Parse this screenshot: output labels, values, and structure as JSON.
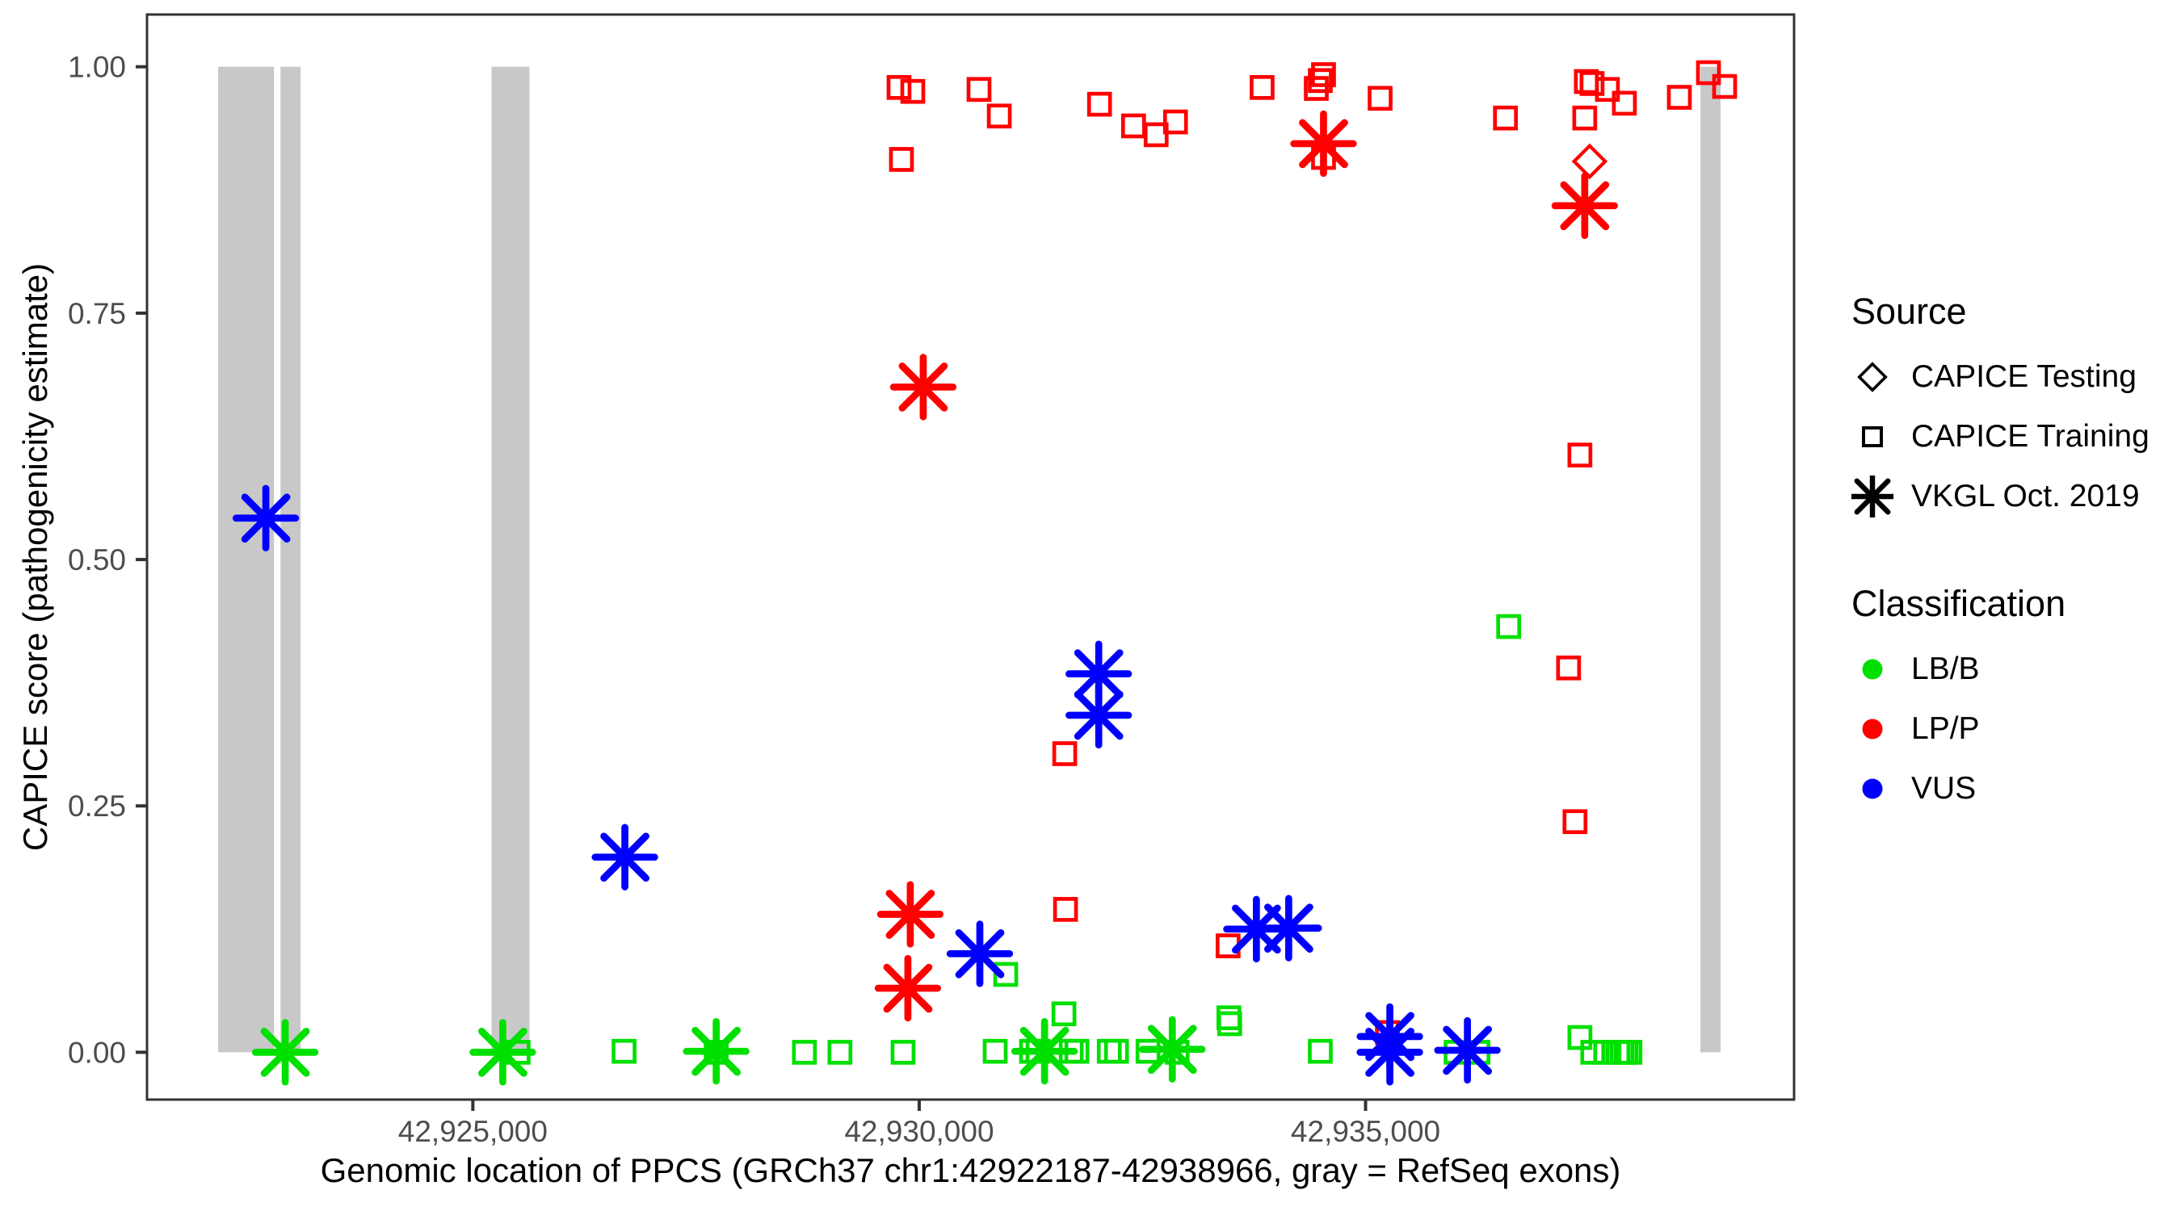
{
  "figure": {
    "x_axis_title": "Genomic location of PPCS (GRCh37 chr1:42922187-42938966, gray = RefSeq exons)",
    "y_axis_title": "CAPICE score (pathogenicity estimate)"
  },
  "legend": {
    "source": {
      "title": "Source",
      "items": [
        {
          "label": "CAPICE Testing",
          "marker": "diamond"
        },
        {
          "label": "CAPICE Training",
          "marker": "square"
        },
        {
          "label": "VKGL Oct. 2019",
          "marker": "asterisk"
        }
      ]
    },
    "classification": {
      "title": "Classification",
      "items": [
        {
          "label": "LB/B",
          "color": "#00E000"
        },
        {
          "label": "LP/P",
          "color": "#FF0000"
        },
        {
          "label": "VUS",
          "color": "#0000FF"
        }
      ]
    }
  },
  "chart_data": {
    "type": "scatter",
    "title": "",
    "xlabel": "Genomic location of PPCS (GRCh37 chr1:42922187-42938966, gray = RefSeq exons)",
    "ylabel": "CAPICE score (pathogenicity estimate)",
    "xlim": [
      42921350,
      42939800
    ],
    "ylim": [
      -0.048,
      1.053
    ],
    "grid": false,
    "legend_position": "right",
    "x_ticks": [
      {
        "value": 42925000,
        "label": "42,925,000"
      },
      {
        "value": 42930000,
        "label": "42,930,000"
      },
      {
        "value": 42935000,
        "label": "42,935,000"
      }
    ],
    "y_ticks": [
      {
        "value": 0.0,
        "label": "0.00"
      },
      {
        "value": 0.25,
        "label": "0.25"
      },
      {
        "value": 0.5,
        "label": "0.50"
      },
      {
        "value": 0.75,
        "label": "0.75"
      },
      {
        "value": 1.0,
        "label": "1.00"
      }
    ],
    "exon_color": "#C8C8C8",
    "exon_note": "gray = RefSeq exons",
    "refseq_exons": [
      [
        42922147,
        42922772
      ],
      [
        42922845,
        42923071
      ],
      [
        42925209,
        42925634
      ],
      [
        42938751,
        42938977
      ]
    ],
    "class_colors": {
      "LB/B": "#00E000",
      "LP/P": "#FF0000",
      "VUS": "#0000FF"
    },
    "series": [
      {
        "name": "CAPICE Testing",
        "marker": "diamond",
        "points": [
          [
            42937510,
            0.904,
            "LP/P"
          ]
        ]
      },
      {
        "name": "CAPICE Training",
        "marker": "square",
        "points": [
          [
            42929774,
            0.979,
            "LP/P"
          ],
          [
            42929928,
            0.975,
            "LP/P"
          ],
          [
            42929801,
            0.906,
            "LP/P"
          ],
          [
            42930670,
            0.977,
            "LP/P"
          ],
          [
            42930897,
            0.95,
            "LP/P"
          ],
          [
            42932020,
            0.962,
            "LP/P"
          ],
          [
            42932401,
            0.94,
            "LP/P"
          ],
          [
            42932654,
            0.931,
            "LP/P"
          ],
          [
            42932871,
            0.944,
            "LP/P"
          ],
          [
            42933841,
            0.979,
            "LP/P"
          ],
          [
            42934493,
            0.986,
            "LP/P"
          ],
          [
            42934529,
            0.992,
            "LP/P"
          ],
          [
            42934448,
            0.978,
            "LP/P"
          ],
          [
            42935163,
            0.968,
            "LP/P"
          ],
          [
            42934529,
            0.908,
            "LP/P"
          ],
          [
            42936567,
            0.948,
            "LP/P"
          ],
          [
            42937473,
            0.985,
            "LP/P"
          ],
          [
            42937537,
            0.983,
            "LP/P"
          ],
          [
            42937709,
            0.977,
            "LP/P"
          ],
          [
            42937899,
            0.963,
            "LP/P"
          ],
          [
            42937455,
            0.948,
            "LP/P"
          ],
          [
            42938841,
            0.994,
            "LP/P"
          ],
          [
            42939022,
            0.98,
            "LP/P"
          ],
          [
            42938515,
            0.969,
            "LP/P"
          ],
          [
            42937401,
            0.606,
            "LP/P"
          ],
          [
            42937274,
            0.39,
            "LP/P"
          ],
          [
            42937346,
            0.234,
            "LP/P"
          ],
          [
            42931630,
            0.303,
            "LP/P"
          ],
          [
            42931639,
            0.145,
            "LP/P"
          ],
          [
            42933460,
            0.108,
            "LP/P"
          ],
          [
            42935245,
            0.02,
            "LP/P"
          ],
          [
            42936603,
            0.432,
            "LB/B"
          ],
          [
            42930969,
            0.079,
            "LB/B"
          ],
          [
            42931621,
            0.039,
            "LB/B"
          ],
          [
            42933469,
            0.035,
            "LB/B"
          ],
          [
            42933478,
            0.029,
            "LB/B"
          ],
          [
            42937401,
            0.015,
            "LB/B"
          ],
          [
            42925507,
            0.0,
            "LB/B"
          ],
          [
            42926694,
            0.001,
            "LB/B"
          ],
          [
            42927726,
            0.0,
            "LB/B"
          ],
          [
            42928714,
            0.0,
            "LB/B"
          ],
          [
            42929112,
            0.0,
            "LB/B"
          ],
          [
            42929819,
            0.0,
            "LB/B"
          ],
          [
            42930851,
            0.001,
            "LB/B"
          ],
          [
            42931258,
            0.001,
            "LB/B"
          ],
          [
            42931331,
            0.001,
            "LB/B"
          ],
          [
            42931703,
            0.001,
            "LB/B"
          ],
          [
            42931766,
            0.001,
            "LB/B"
          ],
          [
            42932129,
            0.001,
            "LB/B"
          ],
          [
            42932210,
            0.001,
            "LB/B"
          ],
          [
            42932563,
            0.001,
            "LB/B"
          ],
          [
            42932889,
            0.0,
            "LB/B"
          ],
          [
            42934493,
            0.001,
            "LB/B"
          ],
          [
            42936014,
            0.0,
            "LB/B"
          ],
          [
            42936259,
            0.0,
            "LB/B"
          ],
          [
            42937545,
            0.0,
            "LB/B"
          ],
          [
            42937690,
            0.0,
            "LB/B"
          ],
          [
            42937826,
            0.0,
            "LB/B"
          ],
          [
            42937871,
            0.0,
            "LB/B"
          ],
          [
            42937916,
            0.0,
            "LB/B"
          ],
          [
            42937962,
            0.0,
            "LB/B"
          ]
        ]
      },
      {
        "name": "VKGL Oct. 2019",
        "marker": "asterisk",
        "points": [
          [
            42922681,
            0.542,
            "VUS"
          ],
          [
            42926703,
            0.198,
            "VUS"
          ],
          [
            42930679,
            0.1,
            "VUS"
          ],
          [
            42932011,
            0.384,
            "VUS"
          ],
          [
            42932011,
            0.342,
            "VUS"
          ],
          [
            42933777,
            0.125,
            "VUS"
          ],
          [
            42934139,
            0.126,
            "VUS"
          ],
          [
            42935272,
            0.016,
            "VUS"
          ],
          [
            42935272,
            0.0,
            "VUS"
          ],
          [
            42936141,
            0.002,
            "VUS"
          ],
          [
            42922898,
            0.0,
            "LB/B"
          ],
          [
            42925335,
            0.0,
            "LB/B"
          ],
          [
            42927726,
            0.001,
            "LB/B"
          ],
          [
            42931404,
            0.001,
            "LB/B"
          ],
          [
            42932835,
            0.003,
            "LB/B"
          ],
          [
            42930045,
            0.675,
            "LP/P"
          ],
          [
            42929900,
            0.14,
            "LP/P"
          ],
          [
            42929873,
            0.065,
            "LP/P"
          ],
          [
            42934529,
            0.922,
            "LP/P"
          ],
          [
            42937455,
            0.859,
            "LP/P"
          ]
        ]
      }
    ]
  }
}
